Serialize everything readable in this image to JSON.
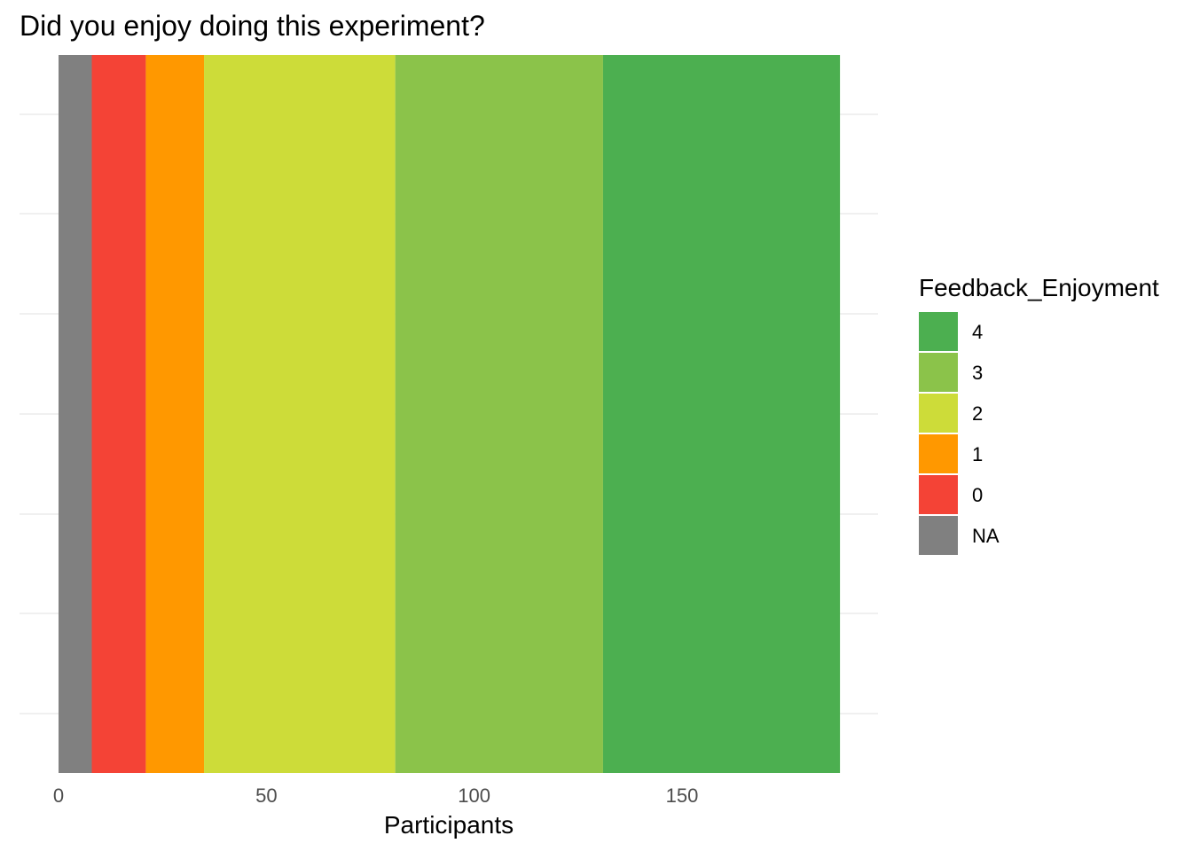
{
  "chart_data": {
    "type": "bar",
    "orientation": "horizontal",
    "stacked": true,
    "title": "Did you enjoy doing this experiment?",
    "xlabel": "Participants",
    "ylabel": "",
    "xlim": [
      0,
      190
    ],
    "x_ticks": [
      0,
      50,
      100,
      150
    ],
    "grid": true,
    "legend_title": "Feedback_Enjoyment",
    "legend_position": "right",
    "series": [
      {
        "name": "NA",
        "value": 8,
        "color": "#808080"
      },
      {
        "name": "0",
        "value": 13,
        "color": "#f44336"
      },
      {
        "name": "1",
        "value": 14,
        "color": "#ff9800"
      },
      {
        "name": "2",
        "value": 46,
        "color": "#cddc39"
      },
      {
        "name": "3",
        "value": 50,
        "color": "#8bc34a"
      },
      {
        "name": "4",
        "value": 57,
        "color": "#4caf50"
      }
    ],
    "legend_order": [
      "4",
      "3",
      "2",
      "1",
      "0",
      "NA"
    ]
  }
}
